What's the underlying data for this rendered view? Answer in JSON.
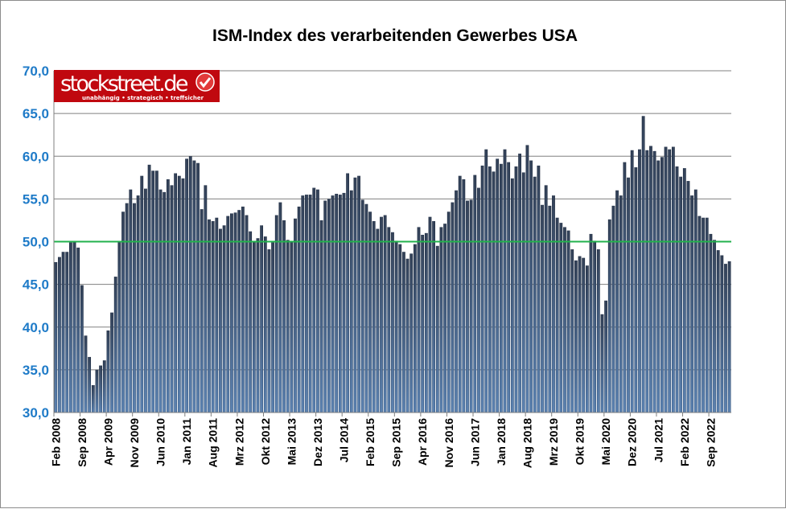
{
  "chart_data": {
    "type": "bar",
    "title": "ISM-Index des verarbeitenden Gewerbes USA",
    "xlabel": "",
    "ylabel": "",
    "ylim": [
      30,
      70
    ],
    "yticks": [
      "30,0",
      "35,0",
      "40,0",
      "45,0",
      "50,0",
      "55,0",
      "60,0",
      "65,0",
      "70,0"
    ],
    "grid": true,
    "reference_line": {
      "value": 50,
      "color": "#22b14c"
    },
    "first_month": "Feb 2008",
    "last_month": "Feb 2023",
    "xtick_labels": [
      "Feb 2008",
      "Sep 2008",
      "Apr 2009",
      "Nov 2009",
      "Jun 2010",
      "Jan 2011",
      "Aug 2011",
      "Mrz 2012",
      "Okt 2012",
      "Mai 2013",
      "Dez 2013",
      "Jul 2014",
      "Feb 2015",
      "Sep 2015",
      "Apr 2016",
      "Nov 2016",
      "Jun 2017",
      "Jan 2018",
      "Aug 2018",
      "Mrz 2019",
      "Okt 2019",
      "Mai 2020",
      "Dez 2020",
      "Jul 2021",
      "Feb 2022",
      "Sep 2022"
    ],
    "xtick_every_months": 7,
    "values": [
      47.6,
      48.2,
      48.8,
      48.8,
      49.9,
      50.0,
      49.3,
      44.9,
      39.0,
      36.5,
      33.2,
      35.0,
      35.5,
      36.1,
      39.6,
      41.7,
      45.9,
      50.0,
      53.5,
      54.5,
      56.1,
      54.5,
      55.4,
      57.7,
      56.2,
      59.0,
      58.3,
      58.3,
      56.1,
      55.8,
      57.3,
      56.6,
      58.0,
      57.7,
      57.4,
      59.7,
      60.0,
      59.5,
      59.2,
      53.8,
      56.6,
      52.6,
      52.4,
      52.8,
      51.5,
      51.9,
      53.0,
      53.3,
      53.4,
      53.7,
      54.1,
      53.1,
      51.2,
      50.0,
      50.4,
      51.9,
      50.6,
      49.1,
      49.9,
      53.1,
      54.6,
      52.5,
      50.2,
      50.0,
      52.7,
      54.1,
      55.4,
      55.5,
      55.5,
      56.3,
      56.1,
      52.5,
      54.8,
      55.0,
      55.4,
      55.6,
      55.5,
      55.7,
      58.0,
      56.0,
      57.5,
      57.7,
      54.9,
      54.4,
      53.5,
      52.4,
      51.5,
      52.9,
      53.1,
      51.7,
      51.1,
      50.1,
      49.7,
      48.8,
      48.0,
      48.6,
      49.7,
      51.7,
      50.8,
      51.0,
      52.9,
      52.4,
      49.5,
      51.7,
      52.1,
      53.5,
      54.6,
      56.0,
      57.7,
      57.3,
      54.8,
      54.9,
      57.8,
      56.3,
      58.9,
      60.8,
      58.8,
      58.2,
      59.7,
      59.1,
      60.8,
      59.3,
      57.4,
      58.8,
      60.3,
      58.1,
      61.3,
      59.5,
      57.6,
      58.9,
      54.3,
      56.6,
      54.2,
      55.4,
      52.8,
      52.2,
      51.7,
      51.3,
      49.1,
      47.8,
      48.3,
      48.1,
      47.2,
      50.9,
      50.1,
      49.1,
      41.5,
      43.1,
      52.6,
      54.2,
      56.0,
      55.4,
      59.3,
      57.5,
      60.7,
      58.7,
      60.8,
      64.7,
      60.7,
      61.2,
      60.6,
      59.5,
      59.9,
      61.1,
      60.8,
      61.1,
      58.8,
      57.6,
      58.6,
      57.1,
      55.4,
      56.1,
      53.0,
      52.8,
      52.8,
      50.9,
      50.2,
      49.0,
      48.4,
      47.4,
      47.7
    ],
    "bar_color_top": "#1b2c47",
    "bar_color_bottom": "#4a78b0"
  },
  "logo": {
    "name": "stockstreet.de",
    "tagline": "unabhängig • strategisch • treffsicher",
    "color": "#c0080f"
  }
}
